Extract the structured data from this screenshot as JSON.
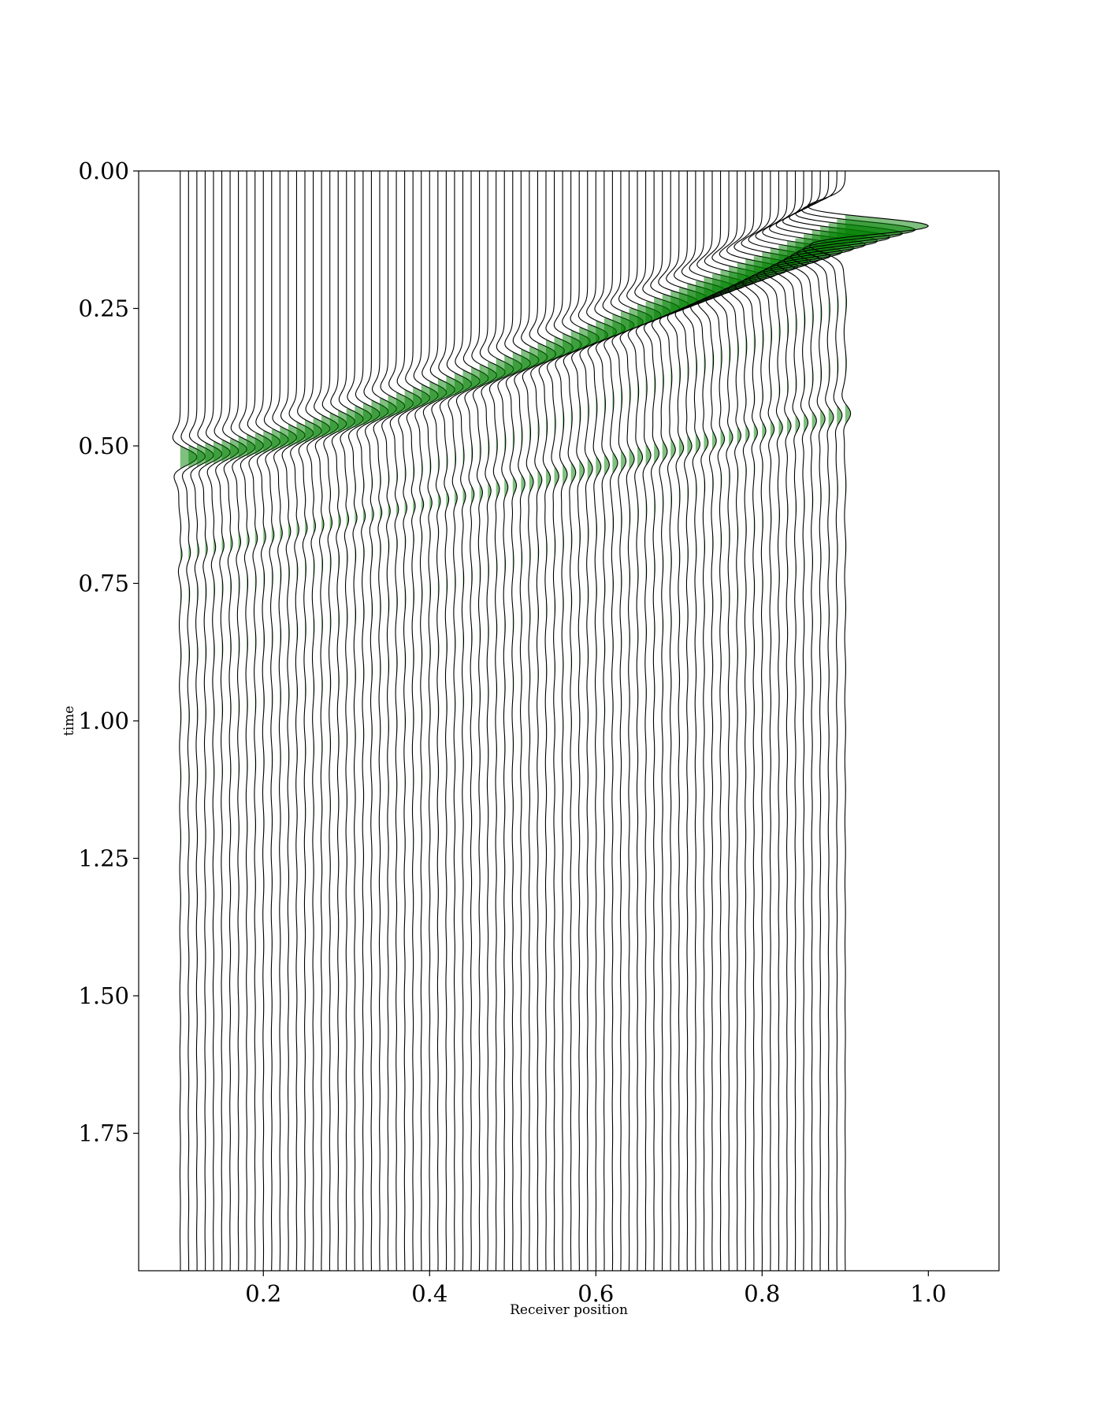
{
  "chart_data": {
    "type": "wiggle",
    "title": "",
    "xlabel": "Receiver position",
    "ylabel": "time",
    "xlim": [
      0.05,
      1.085
    ],
    "ylim": [
      2.0,
      0.0
    ],
    "y_inverted": true,
    "xticks": [
      0.2,
      0.4,
      0.6,
      0.8,
      1.0
    ],
    "xtick_labels": [
      "0.2",
      "0.4",
      "0.6",
      "0.8",
      "1.0"
    ],
    "yticks": [
      0.0,
      0.25,
      0.5,
      0.75,
      1.0,
      1.25,
      1.5,
      1.75
    ],
    "ytick_labels": [
      "0.00",
      "0.25",
      "0.50",
      "0.75",
      "1.00",
      "1.25",
      "1.50",
      "1.75"
    ],
    "traces": {
      "count": 81,
      "receiver_start": 0.1,
      "receiver_end": 0.9,
      "receiver_spacing": 0.01,
      "time_start": 0.0,
      "time_end": 2.0
    },
    "events": [
      {
        "name": "direct-arrival",
        "time_at_first_receiver": 0.52,
        "time_at_last_receiver": 0.1,
        "amplitude_at_first_receiver": 0.02,
        "amplitude_at_last_receiver": 0.1
      },
      {
        "name": "later-event",
        "time_at_first_receiver": 0.7,
        "time_at_last_receiver": 0.44,
        "amplitude_at_first_receiver": 0.003,
        "amplitude_at_last_receiver": 0.006
      }
    ],
    "grid": false,
    "fill_color": "#008000",
    "fill_opacity": 0.5,
    "line_color": "#000000"
  }
}
